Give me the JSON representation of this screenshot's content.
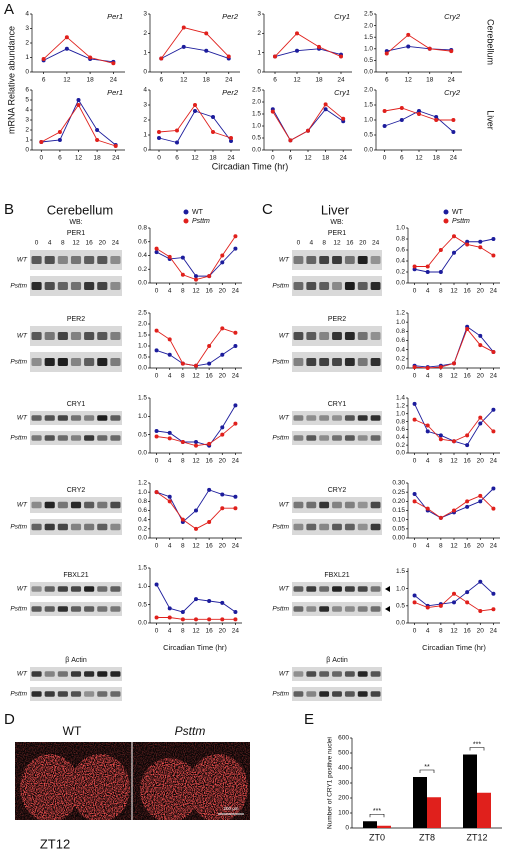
{
  "figure": {
    "panels": [
      "A",
      "B",
      "C",
      "D",
      "E"
    ],
    "a_y_label": "mRNA Relative abundance",
    "a_x_label": "Circadian Time (hr)",
    "a_row_labels": [
      "Cerebellum",
      "Liver"
    ],
    "b": {
      "title": "Cerebellum",
      "wb": "WB:",
      "lanes": [
        "0",
        "4",
        "8",
        "12",
        "16",
        "20",
        "24"
      ],
      "rows": [
        "WT",
        "Psttm"
      ],
      "proteins": [
        "PER1",
        "PER2",
        "CRY1",
        "CRY2",
        "FBXL21",
        "β Actin"
      ],
      "x_label": "Circadian Time (hr)"
    },
    "c": {
      "title": "Liver",
      "wb": "WB:",
      "lanes": [
        "0",
        "4",
        "8",
        "12",
        "16",
        "20",
        "24"
      ],
      "rows": [
        "WT",
        "Psttm"
      ],
      "proteins": [
        "PER1",
        "PER2",
        "CRY1",
        "CRY2",
        "FBXL21",
        "β Actin"
      ],
      "x_label": "Circadian Time (hr)"
    },
    "d": {
      "labels": [
        "WT",
        "Psttm"
      ],
      "caption": "ZT12",
      "scale_bar": "200 μm"
    }
  },
  "chart_data": [
    {
      "type": "line",
      "title": "Per1",
      "x": [
        6,
        12,
        18,
        24
      ],
      "xlim": [
        3,
        27
      ],
      "xticks": [
        6,
        12,
        18,
        24
      ],
      "ylim": [
        0,
        4
      ],
      "yticks": [
        0,
        1,
        2,
        3,
        4
      ],
      "series": [
        {
          "name": "WT",
          "color": "#1c1c9c",
          "values": [
            0.8,
            1.6,
            0.9,
            0.7
          ]
        },
        {
          "name": "Psttm",
          "color": "#e0201c",
          "values": [
            0.9,
            2.4,
            1.0,
            0.6
          ]
        }
      ]
    },
    {
      "type": "line",
      "title": "Per2",
      "x": [
        6,
        12,
        18,
        24
      ],
      "xlim": [
        3,
        27
      ],
      "xticks": [
        6,
        12,
        18,
        24
      ],
      "ylim": [
        0,
        3
      ],
      "yticks": [
        0,
        1,
        2,
        3
      ],
      "series": [
        {
          "name": "WT",
          "color": "#1c1c9c",
          "values": [
            0.7,
            1.3,
            1.1,
            0.7
          ]
        },
        {
          "name": "Psttm",
          "color": "#e0201c",
          "values": [
            0.7,
            2.3,
            2.0,
            0.8
          ]
        }
      ]
    },
    {
      "type": "line",
      "title": "Cry1",
      "x": [
        6,
        12,
        18,
        24
      ],
      "xlim": [
        3,
        27
      ],
      "xticks": [
        6,
        12,
        18,
        24
      ],
      "ylim": [
        0,
        3
      ],
      "yticks": [
        0,
        1,
        2,
        3
      ],
      "series": [
        {
          "name": "WT",
          "color": "#1c1c9c",
          "values": [
            0.8,
            1.1,
            1.2,
            0.9
          ]
        },
        {
          "name": "Psttm",
          "color": "#e0201c",
          "values": [
            0.8,
            2.0,
            1.3,
            0.8
          ]
        }
      ]
    },
    {
      "type": "line",
      "title": "Cry2",
      "x": [
        6,
        12,
        18,
        24
      ],
      "xlim": [
        3,
        27
      ],
      "xticks": [
        6,
        12,
        18,
        24
      ],
      "ylim": [
        0,
        2.5
      ],
      "yticks": [
        {
          "value": 0,
          "label": "0.0"
        },
        0.5,
        {
          "value": 1,
          "label": "1.0"
        },
        1.5,
        {
          "value": 2,
          "label": "2.0"
        },
        2.5
      ],
      "series": [
        {
          "name": "WT",
          "color": "#1c1c9c",
          "values": [
            0.9,
            1.1,
            1.0,
            0.95
          ]
        },
        {
          "name": "Psttm",
          "color": "#e0201c",
          "values": [
            0.8,
            1.6,
            1.0,
            0.9
          ]
        }
      ]
    },
    {
      "type": "line",
      "title": "Per1",
      "x": [
        0,
        6,
        12,
        18,
        24
      ],
      "xlim": [
        -3,
        27
      ],
      "xticks": [
        0,
        6,
        12,
        18,
        24
      ],
      "ylim": [
        0,
        6
      ],
      "yticks": [
        0,
        1,
        2,
        3,
        4,
        5,
        6
      ],
      "series": [
        {
          "name": "WT",
          "color": "#1c1c9c",
          "values": [
            0.8,
            1.0,
            5.0,
            2.0,
            0.5
          ]
        },
        {
          "name": "Psttm",
          "color": "#e0201c",
          "values": [
            0.8,
            1.8,
            4.5,
            1.0,
            0.4
          ]
        }
      ]
    },
    {
      "type": "line",
      "title": "Per2",
      "x": [
        0,
        6,
        12,
        18,
        24
      ],
      "xlim": [
        -3,
        27
      ],
      "xticks": [
        0,
        6,
        12,
        18,
        24
      ],
      "ylim": [
        0,
        4
      ],
      "yticks": [
        0,
        1,
        2,
        3,
        4
      ],
      "series": [
        {
          "name": "WT",
          "color": "#1c1c9c",
          "values": [
            0.8,
            0.5,
            2.6,
            2.2,
            0.6
          ]
        },
        {
          "name": "Psttm",
          "color": "#e0201c",
          "values": [
            1.2,
            1.3,
            3.0,
            1.2,
            0.8
          ]
        }
      ]
    },
    {
      "type": "line",
      "title": "Cry1",
      "x": [
        0,
        6,
        12,
        18,
        24
      ],
      "xlim": [
        -3,
        27
      ],
      "xticks": [
        0,
        6,
        12,
        18,
        24
      ],
      "ylim": [
        0,
        2.5
      ],
      "yticks": [
        {
          "value": 0,
          "label": "0.0"
        },
        0.5,
        {
          "value": 1,
          "label": "1.0"
        },
        1.5,
        {
          "value": 2,
          "label": "2.0"
        },
        2.5
      ],
      "series": [
        {
          "name": "WT",
          "color": "#1c1c9c",
          "values": [
            1.7,
            0.4,
            0.8,
            1.7,
            1.2
          ]
        },
        {
          "name": "Psttm",
          "color": "#e0201c",
          "values": [
            1.6,
            0.4,
            0.8,
            1.9,
            1.3
          ]
        }
      ]
    },
    {
      "type": "line",
      "title": "Cry2",
      "x": [
        0,
        6,
        12,
        18,
        24
      ],
      "xlim": [
        -3,
        27
      ],
      "xticks": [
        0,
        6,
        12,
        18,
        24
      ],
      "ylim": [
        0,
        2
      ],
      "yticks": [
        {
          "value": 0,
          "label": "0.0"
        },
        0.5,
        {
          "value": 1,
          "label": "1.0"
        },
        1.5,
        {
          "value": 2,
          "label": "2.0"
        }
      ],
      "series": [
        {
          "name": "WT",
          "color": "#1c1c9c",
          "values": [
            0.8,
            1.0,
            1.3,
            1.1,
            0.6
          ]
        },
        {
          "name": "Psttm",
          "color": "#e0201c",
          "values": [
            1.3,
            1.4,
            1.2,
            1.0,
            1.0
          ]
        }
      ]
    },
    {
      "type": "line",
      "x": [
        0,
        4,
        8,
        12,
        16,
        20,
        24
      ],
      "xlim": [
        -2,
        26
      ],
      "xticks": [
        0,
        4,
        8,
        12,
        16,
        20,
        24
      ],
      "ylim": [
        0,
        0.8
      ],
      "yticks": [
        {
          "value": 0,
          "label": "0.0"
        },
        0.2,
        0.4,
        0.6,
        0.8
      ],
      "series": [
        {
          "name": "WT",
          "color": "#1c1c9c",
          "values": [
            0.45,
            0.35,
            0.37,
            0.1,
            0.1,
            0.3,
            0.5
          ]
        },
        {
          "name": "Psttm",
          "color": "#e0201c",
          "values": [
            0.5,
            0.38,
            0.12,
            0.05,
            0.1,
            0.4,
            0.68
          ]
        }
      ]
    },
    {
      "type": "line",
      "x": [
        0,
        4,
        8,
        12,
        16,
        20,
        24
      ],
      "xlim": [
        -2,
        26
      ],
      "xticks": [
        0,
        4,
        8,
        12,
        16,
        20,
        24
      ],
      "ylim": [
        0,
        2.5
      ],
      "yticks": [
        {
          "value": 0,
          "label": "0.0"
        },
        0.5,
        {
          "value": 1,
          "label": "1.0"
        },
        1.5,
        {
          "value": 2,
          "label": "2.0"
        },
        2.5
      ],
      "series": [
        {
          "name": "WT",
          "color": "#1c1c9c",
          "values": [
            0.8,
            0.6,
            0.2,
            0.1,
            0.2,
            0.6,
            1.0
          ]
        },
        {
          "name": "Psttm",
          "color": "#e0201c",
          "values": [
            1.7,
            1.3,
            0.2,
            0.1,
            1.0,
            1.8,
            1.6
          ]
        }
      ]
    },
    {
      "type": "line",
      "x": [
        0,
        4,
        8,
        12,
        16,
        20,
        24
      ],
      "xlim": [
        -2,
        26
      ],
      "xticks": [
        0,
        4,
        8,
        12,
        16,
        20,
        24
      ],
      "ylim": [
        0,
        1.5
      ],
      "yticks": [
        {
          "value": 0,
          "label": "0.0"
        },
        0.5,
        {
          "value": 1,
          "label": "1.0"
        },
        1.5
      ],
      "series": [
        {
          "name": "WT",
          "color": "#1c1c9c",
          "values": [
            0.6,
            0.55,
            0.3,
            0.3,
            0.2,
            0.7,
            1.3
          ]
        },
        {
          "name": "Psttm",
          "color": "#e0201c",
          "values": [
            0.45,
            0.4,
            0.3,
            0.2,
            0.25,
            0.5,
            0.8
          ]
        }
      ]
    },
    {
      "type": "line",
      "x": [
        0,
        4,
        8,
        12,
        16,
        20,
        24
      ],
      "xlim": [
        -2,
        26
      ],
      "xticks": [
        0,
        4,
        8,
        12,
        16,
        20,
        24
      ],
      "ylim": [
        0,
        1.2
      ],
      "yticks": [
        {
          "value": 0,
          "label": "0.0"
        },
        0.2,
        0.4,
        0.6,
        0.8,
        {
          "value": 1,
          "label": "1.0"
        },
        1.2
      ],
      "series": [
        {
          "name": "WT",
          "color": "#1c1c9c",
          "values": [
            1.0,
            0.9,
            0.35,
            0.6,
            1.05,
            0.95,
            0.9
          ]
        },
        {
          "name": "Psttm",
          "color": "#e0201c",
          "values": [
            1.0,
            0.8,
            0.4,
            0.2,
            0.35,
            0.65,
            0.65
          ]
        }
      ]
    },
    {
      "type": "line",
      "x": [
        0,
        4,
        8,
        12,
        16,
        20,
        24
      ],
      "xlim": [
        -2,
        26
      ],
      "xticks": [
        0,
        4,
        8,
        12,
        16,
        20,
        24
      ],
      "ylim": [
        0,
        1.5
      ],
      "yticks": [
        {
          "value": 0,
          "label": "0.0"
        },
        0.5,
        {
          "value": 1,
          "label": "1.0"
        },
        1.5
      ],
      "series": [
        {
          "name": "WT",
          "color": "#1c1c9c",
          "values": [
            1.05,
            0.4,
            0.3,
            0.65,
            0.6,
            0.55,
            0.3
          ]
        },
        {
          "name": "Psttm",
          "color": "#e0201c",
          "values": [
            0.15,
            0.15,
            0.1,
            0.1,
            0.1,
            0.1,
            0.1
          ]
        }
      ]
    },
    {
      "type": "line",
      "x": [
        0,
        4,
        8,
        12,
        16,
        20,
        24
      ],
      "xlim": [
        -2,
        26
      ],
      "xticks": [
        0,
        4,
        8,
        12,
        16,
        20,
        24
      ],
      "ylim": [
        0,
        1
      ],
      "yticks": [
        {
          "value": 0,
          "label": "0.0"
        },
        0.2,
        0.4,
        0.6,
        0.8,
        {
          "value": 1,
          "label": "1.0"
        }
      ],
      "series": [
        {
          "name": "WT",
          "color": "#1c1c9c",
          "values": [
            0.25,
            0.2,
            0.2,
            0.55,
            0.75,
            0.75,
            0.8
          ]
        },
        {
          "name": "Psttm",
          "color": "#e0201c",
          "values": [
            0.3,
            0.3,
            0.6,
            0.85,
            0.7,
            0.65,
            0.5
          ]
        }
      ]
    },
    {
      "type": "line",
      "x": [
        0,
        4,
        8,
        12,
        16,
        20,
        24
      ],
      "xlim": [
        -2,
        26
      ],
      "xticks": [
        0,
        4,
        8,
        12,
        16,
        20,
        24
      ],
      "ylim": [
        0,
        1.2
      ],
      "yticks": [
        {
          "value": 0,
          "label": "0.0"
        },
        0.2,
        0.4,
        0.6,
        0.8,
        {
          "value": 1,
          "label": "1.0"
        },
        1.2
      ],
      "series": [
        {
          "name": "WT",
          "color": "#1c1c9c",
          "values": [
            0.05,
            0.02,
            0.05,
            0.1,
            0.9,
            0.7,
            0.35
          ]
        },
        {
          "name": "Psttm",
          "color": "#e0201c",
          "values": [
            0.02,
            0.0,
            0.02,
            0.1,
            0.85,
            0.5,
            0.35
          ]
        }
      ]
    },
    {
      "type": "line",
      "x": [
        0,
        4,
        8,
        12,
        16,
        20,
        24
      ],
      "xlim": [
        -2,
        26
      ],
      "xticks": [
        0,
        4,
        8,
        12,
        16,
        20,
        24
      ],
      "ylim": [
        0,
        1.4
      ],
      "yticks": [
        {
          "value": 0,
          "label": "0.0"
        },
        0.2,
        0.4,
        0.6,
        0.8,
        {
          "value": 1,
          "label": "1.0"
        },
        1.2,
        1.4
      ],
      "series": [
        {
          "name": "WT",
          "color": "#1c1c9c",
          "values": [
            1.25,
            0.55,
            0.45,
            0.3,
            0.2,
            0.75,
            1.1
          ]
        },
        {
          "name": "Psttm",
          "color": "#e0201c",
          "values": [
            0.85,
            0.7,
            0.35,
            0.3,
            0.45,
            0.9,
            0.55
          ]
        }
      ]
    },
    {
      "type": "line",
      "x": [
        0,
        4,
        8,
        12,
        16,
        20,
        24
      ],
      "xlim": [
        -2,
        26
      ],
      "xticks": [
        0,
        4,
        8,
        12,
        16,
        20,
        24
      ],
      "ylim": [
        0,
        0.3
      ],
      "yticks": [
        {
          "value": 0,
          "label": "0.00"
        },
        0.05,
        {
          "value": 0.1,
          "label": "0.10"
        },
        0.15,
        {
          "value": 0.2,
          "label": "0.20"
        },
        0.25,
        {
          "value": 0.3,
          "label": "0.30"
        }
      ],
      "series": [
        {
          "name": "WT",
          "color": "#1c1c9c",
          "values": [
            0.24,
            0.15,
            0.11,
            0.14,
            0.17,
            0.2,
            0.27
          ]
        },
        {
          "name": "Psttm",
          "color": "#e0201c",
          "values": [
            0.2,
            0.16,
            0.11,
            0.15,
            0.2,
            0.23,
            0.16
          ]
        }
      ]
    },
    {
      "type": "line",
      "x": [
        0,
        4,
        8,
        12,
        16,
        20,
        24
      ],
      "xlim": [
        -2,
        26
      ],
      "xticks": [
        0,
        4,
        8,
        12,
        16,
        20,
        24
      ],
      "ylim": [
        0,
        1.6
      ],
      "yticks": [
        {
          "value": 0,
          "label": "0.0"
        },
        0.5,
        {
          "value": 1,
          "label": "1.0"
        },
        1.5
      ],
      "series": [
        {
          "name": "WT",
          "color": "#1c1c9c",
          "values": [
            0.8,
            0.5,
            0.55,
            0.6,
            0.9,
            1.2,
            0.85
          ]
        },
        {
          "name": "Psttm",
          "color": "#e0201c",
          "values": [
            0.6,
            0.45,
            0.5,
            0.85,
            0.6,
            0.35,
            0.4
          ]
        }
      ]
    },
    {
      "type": "bar",
      "y_label": "Number of CRY1 positive nuclei",
      "categories": [
        "ZT0",
        "ZT8",
        "ZT12"
      ],
      "ylim": [
        0,
        600
      ],
      "yticks": [
        0,
        100,
        200,
        300,
        400,
        500,
        600
      ],
      "series": [
        {
          "name": "WT",
          "color": "#000000",
          "values": [
            45,
            340,
            490
          ]
        },
        {
          "name": "Psttm",
          "color": "#e0201c",
          "values": [
            15,
            205,
            235
          ]
        }
      ],
      "annotations": [
        "***",
        "**",
        "***"
      ]
    }
  ]
}
